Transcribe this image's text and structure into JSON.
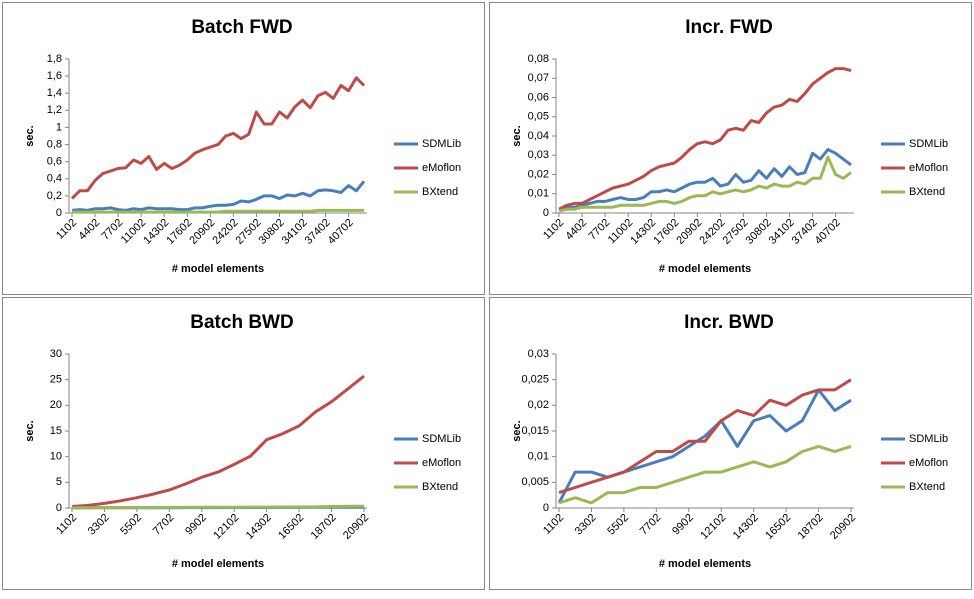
{
  "chart_data": [
    {
      "type": "line",
      "title": "Batch FWD",
      "y_label": "sec.",
      "x_label": "# model elements",
      "categories": [
        "1102",
        null,
        null,
        "4402",
        null,
        null,
        "7702",
        null,
        null,
        "11002",
        null,
        null,
        "14302",
        null,
        null,
        "17602",
        null,
        null,
        "20902",
        null,
        null,
        "24202",
        null,
        null,
        "27502",
        null,
        null,
        "30802",
        null,
        null,
        "34102",
        null,
        null,
        "37402",
        null,
        null,
        "40702",
        null,
        null
      ],
      "ylim": [
        0,
        1.8
      ],
      "yticks": [
        0,
        {
          "value": 0.2,
          "label": "0,2"
        },
        {
          "value": 0.4,
          "label": "0,4"
        },
        {
          "value": 0.6,
          "label": "0,6"
        },
        {
          "value": 0.8,
          "label": "0,8"
        },
        1,
        {
          "value": 1.2,
          "label": "1,2"
        },
        {
          "value": 1.4,
          "label": "1,4"
        },
        {
          "value": 1.6,
          "label": "1,6"
        },
        {
          "value": 1.8,
          "label": "1,8"
        }
      ],
      "series": [
        {
          "name": "SDMLib",
          "color": "#4a7ebb",
          "values": [
            0.03,
            0.04,
            0.03,
            0.05,
            0.05,
            0.06,
            0.04,
            0.03,
            0.05,
            0.04,
            0.06,
            0.05,
            0.05,
            0.05,
            0.04,
            0.04,
            0.06,
            0.06,
            0.08,
            0.09,
            0.09,
            0.1,
            0.14,
            0.13,
            0.16,
            0.2,
            0.2,
            0.17,
            0.21,
            0.2,
            0.23,
            0.2,
            0.26,
            0.27,
            0.26,
            0.24,
            0.32,
            0.26,
            0.37
          ]
        },
        {
          "name": "eMoflon",
          "color": "#be4b48",
          "values": [
            0.17,
            0.26,
            0.26,
            0.38,
            0.46,
            0.49,
            0.52,
            0.53,
            0.62,
            0.58,
            0.66,
            0.51,
            0.58,
            0.52,
            0.56,
            0.62,
            0.7,
            0.74,
            0.77,
            0.8,
            0.9,
            0.93,
            0.87,
            0.92,
            1.18,
            1.04,
            1.04,
            1.18,
            1.11,
            1.24,
            1.32,
            1.23,
            1.37,
            1.41,
            1.34,
            1.49,
            1.43,
            1.58,
            1.49
          ]
        },
        {
          "name": "BXtend",
          "color": "#98b954",
          "values": [
            0.01,
            0.01,
            0.01,
            0.01,
            0.01,
            0.01,
            0.01,
            0.01,
            0.01,
            0.01,
            0.01,
            0.01,
            0.01,
            0.01,
            0.01,
            0.01,
            0.01,
            0.01,
            0.01,
            0.01,
            0.02,
            0.02,
            0.02,
            0.02,
            0.02,
            0.02,
            0.02,
            0.02,
            0.02,
            0.02,
            0.02,
            0.02,
            0.03,
            0.03,
            0.03,
            0.03,
            0.03,
            0.03,
            0.03
          ]
        }
      ]
    },
    {
      "type": "line",
      "title": "Incr. FWD",
      "y_label": "sec.",
      "x_label": "# model elements",
      "categories": [
        "1102",
        null,
        null,
        "4402",
        null,
        null,
        "7702",
        null,
        null,
        "11002",
        null,
        null,
        "14302",
        null,
        null,
        "17602",
        null,
        null,
        "20902",
        null,
        null,
        "24202",
        null,
        null,
        "27502",
        null,
        null,
        "30802",
        null,
        null,
        "34102",
        null,
        null,
        "37402",
        null,
        null,
        "40702",
        null,
        null
      ],
      "ylim": [
        0,
        0.08
      ],
      "yticks": [
        0,
        {
          "value": 0.01,
          "label": "0,01"
        },
        {
          "value": 0.02,
          "label": "0,02"
        },
        {
          "value": 0.03,
          "label": "0,03"
        },
        {
          "value": 0.04,
          "label": "0,04"
        },
        {
          "value": 0.05,
          "label": "0,05"
        },
        {
          "value": 0.06,
          "label": "0,06"
        },
        {
          "value": 0.07,
          "label": "0,07"
        },
        {
          "value": 0.08,
          "label": "0,08"
        }
      ],
      "series": [
        {
          "name": "SDMLib",
          "color": "#4a7ebb",
          "values": [
            0.002,
            0.003,
            0.003,
            0.004,
            0.005,
            0.006,
            0.006,
            0.007,
            0.008,
            0.007,
            0.007,
            0.008,
            0.011,
            0.011,
            0.012,
            0.011,
            0.013,
            0.015,
            0.016,
            0.016,
            0.018,
            0.014,
            0.015,
            0.02,
            0.016,
            0.017,
            0.022,
            0.018,
            0.023,
            0.019,
            0.024,
            0.02,
            0.021,
            0.031,
            0.028,
            0.033,
            0.031,
            0.028,
            0.025
          ]
        },
        {
          "name": "eMoflon",
          "color": "#be4b48",
          "values": [
            0.002,
            0.004,
            0.005,
            0.005,
            0.007,
            0.009,
            0.011,
            0.013,
            0.014,
            0.015,
            0.017,
            0.019,
            0.022,
            0.024,
            0.025,
            0.026,
            0.029,
            0.033,
            0.036,
            0.037,
            0.036,
            0.038,
            0.043,
            0.044,
            0.043,
            0.048,
            0.047,
            0.052,
            0.055,
            0.056,
            0.059,
            0.058,
            0.062,
            0.067,
            0.07,
            0.073,
            0.075,
            0.075,
            0.074
          ]
        },
        {
          "name": "BXtend",
          "color": "#98b954",
          "values": [
            0.001,
            0.002,
            0.002,
            0.003,
            0.003,
            0.003,
            0.003,
            0.003,
            0.004,
            0.004,
            0.004,
            0.004,
            0.005,
            0.006,
            0.006,
            0.005,
            0.006,
            0.008,
            0.009,
            0.009,
            0.011,
            0.01,
            0.011,
            0.012,
            0.011,
            0.012,
            0.014,
            0.013,
            0.015,
            0.014,
            0.014,
            0.016,
            0.015,
            0.018,
            0.018,
            0.029,
            0.02,
            0.018,
            0.021
          ]
        }
      ]
    },
    {
      "type": "line",
      "title": "Batch BWD",
      "y_label": "sec.",
      "x_label": "# model elements",
      "categories": [
        "1102",
        null,
        "3302",
        null,
        "5502",
        null,
        "7702",
        null,
        "9902",
        null,
        "12102",
        null,
        "14302",
        null,
        "16502",
        null,
        "18702",
        null,
        "20902"
      ],
      "ylim": [
        0,
        30
      ],
      "yticks": [
        0,
        5,
        10,
        15,
        20,
        25,
        30
      ],
      "series": [
        {
          "name": "SDMLib",
          "color": "#4a7ebb",
          "values": [
            0.02,
            0.03,
            0.03,
            0.04,
            0.05,
            0.05,
            0.06,
            0.07,
            0.08,
            0.08,
            0.09,
            0.1,
            0.1,
            0.11,
            0.12,
            0.13,
            0.14,
            0.15,
            0.16
          ]
        },
        {
          "name": "eMoflon",
          "color": "#be4b48",
          "values": [
            0.3,
            0.5,
            0.9,
            1.4,
            2.0,
            2.7,
            3.5,
            4.7,
            6.0,
            7.0,
            8.5,
            10.1,
            13.3,
            14.5,
            16.0,
            18.7,
            20.7,
            23.2,
            25.7
          ]
        },
        {
          "name": "BXtend",
          "color": "#98b954",
          "values": [
            0.05,
            0.06,
            0.07,
            0.08,
            0.09,
            0.1,
            0.11,
            0.12,
            0.13,
            0.14,
            0.15,
            0.17,
            0.18,
            0.19,
            0.2,
            0.22,
            0.3,
            0.35,
            0.35
          ]
        }
      ]
    },
    {
      "type": "line",
      "title": "Incr. BWD",
      "y_label": "sec.",
      "x_label": "# model elements",
      "categories": [
        "1102",
        null,
        "3302",
        null,
        "5502",
        null,
        "7702",
        null,
        "9902",
        null,
        "12102",
        null,
        "14302",
        null,
        "16502",
        null,
        "18702",
        null,
        "20902"
      ],
      "ylim": [
        0,
        0.03
      ],
      "yticks": [
        0,
        {
          "value": 0.005,
          "label": "0,005"
        },
        {
          "value": 0.01,
          "label": "0,01"
        },
        {
          "value": 0.015,
          "label": "0,015"
        },
        {
          "value": 0.02,
          "label": "0,02"
        },
        {
          "value": 0.025,
          "label": "0,025"
        },
        {
          "value": 0.03,
          "label": "0,03"
        }
      ],
      "series": [
        {
          "name": "SDMLib",
          "color": "#4a7ebb",
          "values": [
            0.001,
            0.007,
            0.007,
            0.006,
            0.007,
            0.008,
            0.009,
            0.01,
            0.012,
            0.014,
            0.017,
            0.012,
            0.017,
            0.018,
            0.015,
            0.017,
            0.023,
            0.019,
            0.021
          ]
        },
        {
          "name": "eMoflon",
          "color": "#be4b48",
          "values": [
            0.003,
            0.004,
            0.005,
            0.006,
            0.007,
            0.009,
            0.011,
            0.011,
            0.013,
            0.013,
            0.017,
            0.019,
            0.018,
            0.021,
            0.02,
            0.022,
            0.023,
            0.023,
            0.025
          ]
        },
        {
          "name": "BXtend",
          "color": "#98b954",
          "values": [
            0.001,
            0.002,
            0.001,
            0.003,
            0.003,
            0.004,
            0.004,
            0.005,
            0.006,
            0.007,
            0.007,
            0.008,
            0.009,
            0.008,
            0.009,
            0.011,
            0.012,
            0.011,
            0.012
          ]
        }
      ]
    }
  ]
}
